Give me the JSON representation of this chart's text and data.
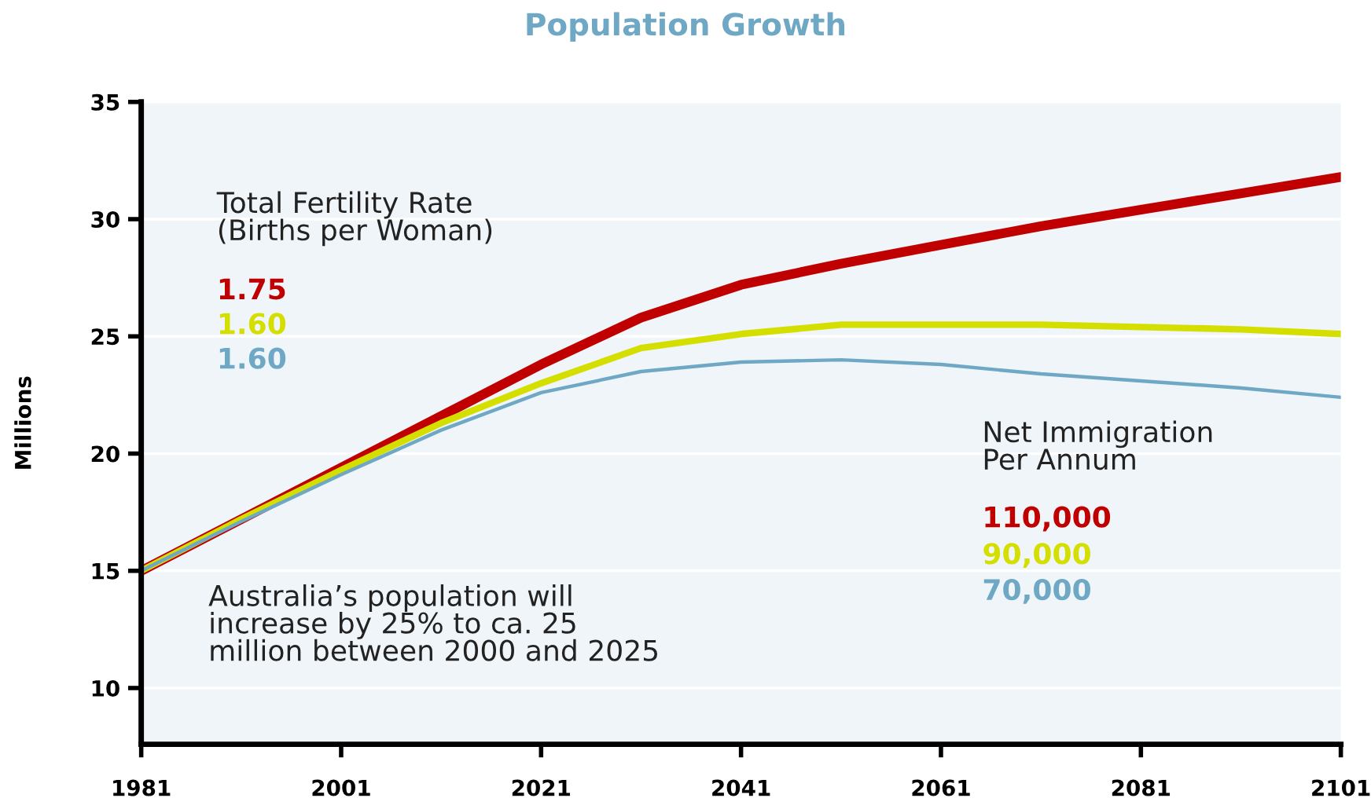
{
  "chart_data": {
    "type": "line",
    "title": "Population Growth",
    "ylabel": "Millions",
    "x": [
      1981,
      1991,
      2001,
      2011,
      2021,
      2031,
      2041,
      2051,
      2061,
      2071,
      2081,
      2091,
      2101
    ],
    "series": [
      {
        "color": "#c00000",
        "values": [
          15,
          17.2,
          19.4,
          21.6,
          23.8,
          25.8,
          27.2,
          28.1,
          28.9,
          29.7,
          30.4,
          31.1,
          31.8
        ]
      },
      {
        "color": "#d4df00",
        "values": [
          15,
          17.2,
          19.3,
          21.3,
          23.0,
          24.5,
          25.1,
          25.5,
          25.5,
          25.5,
          25.4,
          25.3,
          25.1
        ]
      },
      {
        "color": "#6fa8c4",
        "values": [
          15,
          17.1,
          19.1,
          21.0,
          22.6,
          23.5,
          23.9,
          24.0,
          23.8,
          23.4,
          23.1,
          22.8,
          22.4
        ]
      }
    ],
    "xlim": [
      1981,
      2101
    ],
    "xticks": [
      1981,
      2001,
      2021,
      2041,
      2061,
      2081,
      2101
    ],
    "ylim": [
      7.6,
      35
    ],
    "yticks": [
      10,
      15,
      20,
      25,
      30,
      35
    ],
    "grid": "y",
    "legend": false,
    "marker": "none",
    "line_style": "solid",
    "annotations": [
      "Total Fertility Rate\n(Births per Woman)",
      "1.75",
      "1.60",
      "1.60",
      "Net Immigration\nPer Annum",
      "110,000",
      "90,000",
      "70,000",
      "Australia’s population will\nincrease by 25% to ca. 25\nmillion between 2000 and 2025"
    ]
  }
}
